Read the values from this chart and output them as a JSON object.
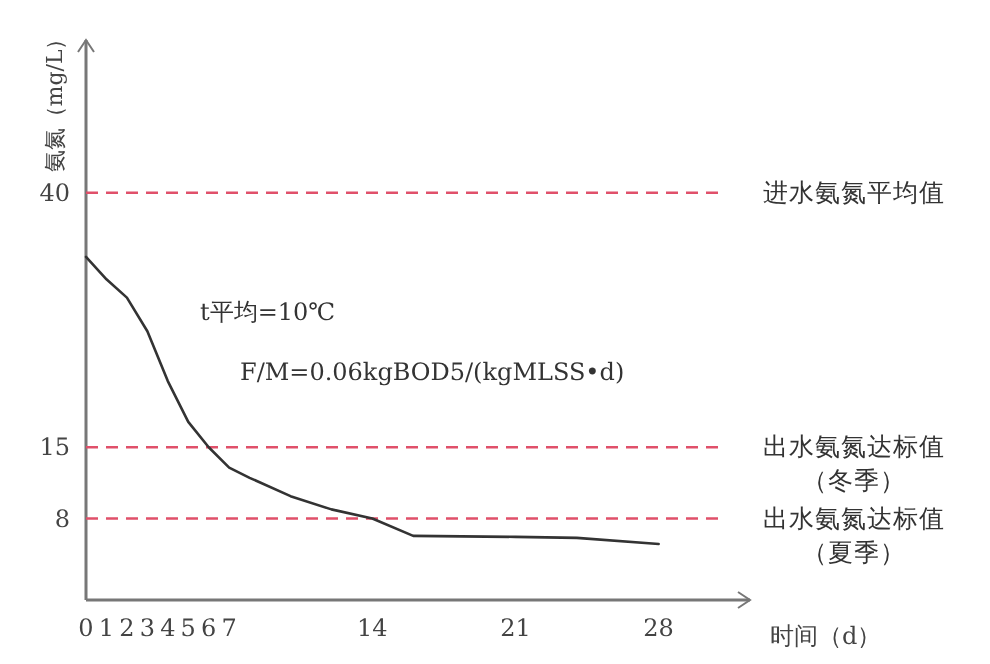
{
  "chart_data": {
    "type": "line",
    "xlabel": "时间（d）",
    "ylabel": "氨氮（mg/L）",
    "x": [
      0,
      1,
      2,
      3,
      4,
      5,
      6,
      7,
      8,
      10,
      12,
      14,
      16,
      21,
      24,
      28
    ],
    "series": [
      {
        "color": "#333333",
        "values": [
          33.7,
          31.5,
          29.7,
          26.4,
          21.5,
          17.5,
          15,
          13,
          12,
          10.2,
          8.9,
          8,
          6.3,
          6.2,
          6.1,
          5.5
        ]
      }
    ],
    "xlim": [
      0,
      31
    ],
    "ylim": [
      0,
      55
    ],
    "xticks": [
      0,
      1,
      2,
      3,
      4,
      5,
      6,
      7,
      14,
      21,
      28
    ],
    "yticks": [
      8,
      15,
      40
    ],
    "ref_lines": [
      {
        "axis": "y",
        "value": 40,
        "label": "进水氨氮平均值",
        "color": "#e0506a",
        "line_style": "dashed"
      },
      {
        "axis": "y",
        "value": 15,
        "label": "出水氨氮达标值（冬季）",
        "color": "#e0506a",
        "line_style": "dashed"
      },
      {
        "axis": "y",
        "value": 8,
        "label": "出水氨氮达标值（夏季）",
        "color": "#e0506a",
        "line_style": "dashed"
      }
    ],
    "annotations": [
      "t平均=10℃",
      "F/M=0.06kgBOD5/(kgMLSS•d)"
    ]
  }
}
